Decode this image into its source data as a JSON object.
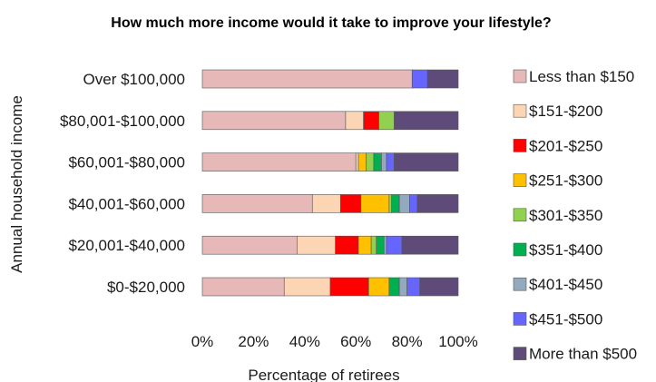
{
  "chart_data": {
    "type": "bar",
    "orientation": "horizontal",
    "stacked": true,
    "title": "How much more income would it take to improve your lifestyle?",
    "xlabel": "Percentage of retirees",
    "ylabel": "Annual household income",
    "xlim": [
      0,
      100
    ],
    "x_ticks": [
      "0%",
      "20%",
      "40%",
      "60%",
      "80%",
      "100%"
    ],
    "grid": false,
    "legend_position": "right",
    "categories": [
      "Over $100,000",
      "$80,001-$100,000",
      "$60,001-$80,000",
      "$40,001-$60,000",
      "$20,001-$40,000",
      "$0-$20,000"
    ],
    "series": [
      {
        "name": "Less than $150",
        "color": "#e6b8b7",
        "values": [
          82,
          56,
          60,
          43,
          37,
          32
        ]
      },
      {
        "name": "$151-$200",
        "color": "#fcd5b4",
        "values": [
          0,
          7,
          1,
          11,
          15,
          18
        ]
      },
      {
        "name": "$201-$250",
        "color": "#ff0000",
        "values": [
          0,
          6,
          0,
          8,
          9,
          15
        ]
      },
      {
        "name": "$251-$300",
        "color": "#ffc000",
        "values": [
          0,
          0,
          3,
          11,
          5,
          8
        ]
      },
      {
        "name": "$301-$350",
        "color": "#92d050",
        "values": [
          0,
          6,
          3,
          1,
          2,
          0
        ]
      },
      {
        "name": "$351-$400",
        "color": "#00b050",
        "values": [
          0,
          0,
          3,
          3,
          3,
          4
        ]
      },
      {
        "name": "$401-$450",
        "color": "#93a9bd",
        "values": [
          0,
          0,
          2,
          4,
          1,
          3
        ]
      },
      {
        "name": "$451-$500",
        "color": "#6666ff",
        "values": [
          6,
          0,
          3,
          3,
          6,
          5
        ]
      },
      {
        "name": "More than $500",
        "color": "#5f4b7a",
        "values": [
          12,
          25,
          25,
          16,
          22,
          15
        ]
      }
    ]
  }
}
